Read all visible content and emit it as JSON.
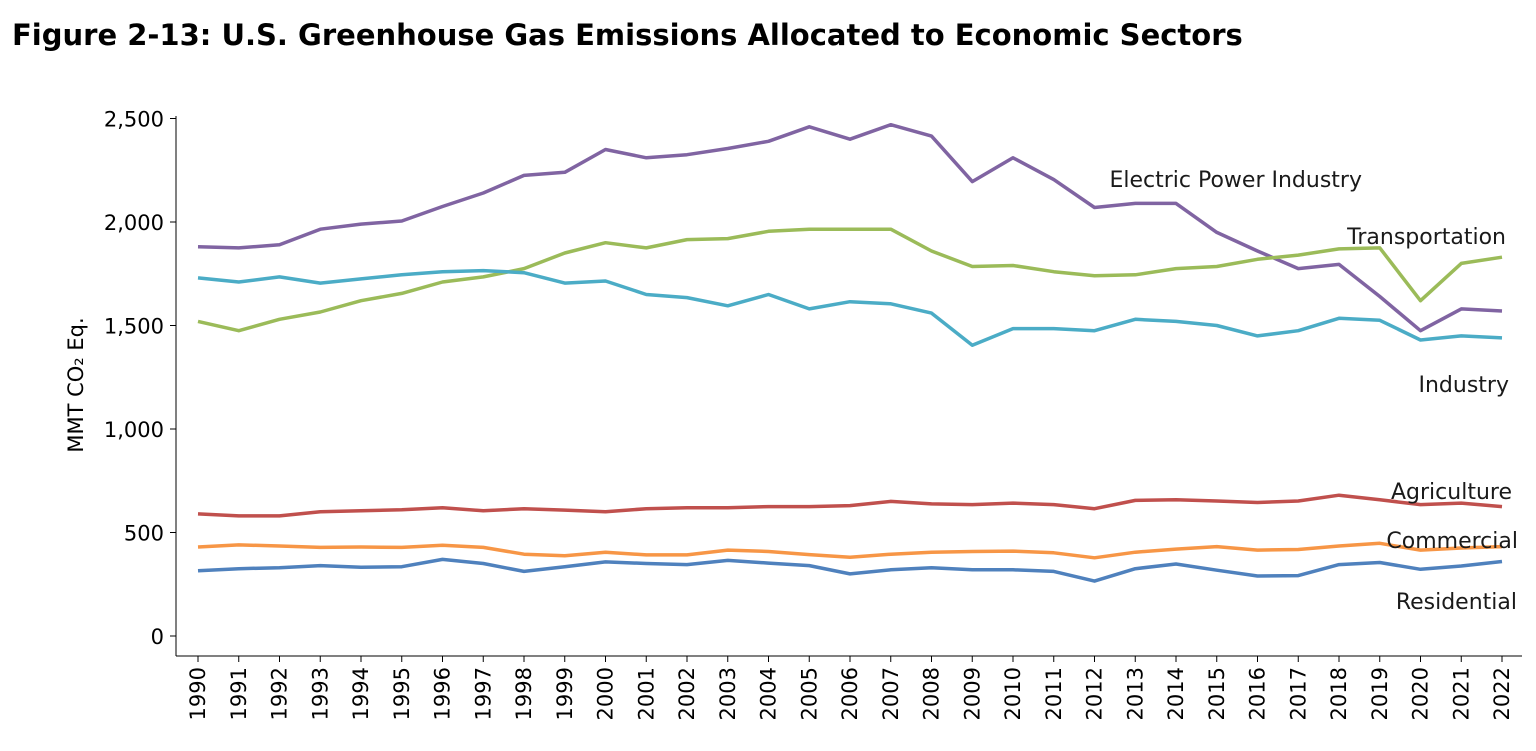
{
  "title": "Figure 2-13:  U.S. Greenhouse Gas Emissions Allocated to Economic Sectors",
  "chart_data": {
    "type": "line",
    "title": "Figure 2-13:  U.S. Greenhouse Gas Emissions Allocated to Economic Sectors",
    "xlabel": "",
    "ylabel": "MMT CO₂ Eq.",
    "ylim": [
      0,
      2600
    ],
    "yticks": [
      0,
      500,
      1000,
      1500,
      2000,
      2500
    ],
    "ytick_labels": [
      "0",
      "500",
      "1,000",
      "1,500",
      "2,000",
      "2,500"
    ],
    "grid": false,
    "x": [
      "1990",
      "1991",
      "1992",
      "1993",
      "1994",
      "1995",
      "1996",
      "1997",
      "1998",
      "1999",
      "2000",
      "2001",
      "2002",
      "2003",
      "2004",
      "2005",
      "2006",
      "2007",
      "2008",
      "2009",
      "2010",
      "2011",
      "2012",
      "2013",
      "2014",
      "2015",
      "2016",
      "2017",
      "2018",
      "2019",
      "2020",
      "2021",
      "2022"
    ],
    "series": [
      {
        "name": "Electric Power Industry",
        "color": "#8064a2",
        "values": [
          1880,
          1875,
          1890,
          1965,
          1990,
          2005,
          2075,
          2140,
          2225,
          2240,
          2350,
          2310,
          2325,
          2355,
          2390,
          2460,
          2400,
          2470,
          2415,
          2195,
          2310,
          2205,
          2070,
          2090,
          2090,
          1950,
          1860,
          1775,
          1795,
          1640,
          1475,
          1580,
          1570
        ]
      },
      {
        "name": "Transportation",
        "color": "#9bbb59",
        "values": [
          1520,
          1475,
          1530,
          1565,
          1620,
          1655,
          1710,
          1735,
          1775,
          1850,
          1900,
          1875,
          1915,
          1920,
          1955,
          1965,
          1965,
          1965,
          1860,
          1785,
          1790,
          1760,
          1740,
          1745,
          1775,
          1785,
          1820,
          1840,
          1870,
          1875,
          1620,
          1800,
          1830
        ]
      },
      {
        "name": "Industry",
        "color": "#4bacc6",
        "values": [
          1730,
          1710,
          1735,
          1705,
          1725,
          1745,
          1760,
          1765,
          1755,
          1705,
          1715,
          1650,
          1635,
          1595,
          1650,
          1580,
          1615,
          1605,
          1560,
          1405,
          1485,
          1485,
          1475,
          1530,
          1520,
          1500,
          1450,
          1475,
          1535,
          1525,
          1430,
          1450,
          1440
        ]
      },
      {
        "name": "Agriculture",
        "color": "#c0504d",
        "values": [
          590,
          580,
          580,
          600,
          605,
          610,
          620,
          605,
          615,
          608,
          600,
          615,
          620,
          620,
          625,
          625,
          630,
          650,
          638,
          635,
          642,
          635,
          615,
          655,
          658,
          652,
          645,
          652,
          680,
          658,
          635,
          642,
          625
        ]
      },
      {
        "name": "Commercial",
        "color": "#f79646",
        "values": [
          430,
          440,
          435,
          428,
          430,
          428,
          438,
          428,
          395,
          388,
          405,
          392,
          392,
          415,
          408,
          393,
          380,
          395,
          405,
          408,
          410,
          402,
          378,
          405,
          420,
          432,
          415,
          418,
          435,
          448,
          415,
          425,
          432
        ]
      },
      {
        "name": "Residential",
        "color": "#4f81bd",
        "values": [
          315,
          325,
          330,
          340,
          332,
          335,
          370,
          350,
          312,
          335,
          358,
          350,
          345,
          365,
          352,
          340,
          300,
          320,
          330,
          320,
          320,
          312,
          265,
          325,
          348,
          318,
          290,
          292,
          345,
          355,
          322,
          338,
          360
        ]
      }
    ]
  }
}
